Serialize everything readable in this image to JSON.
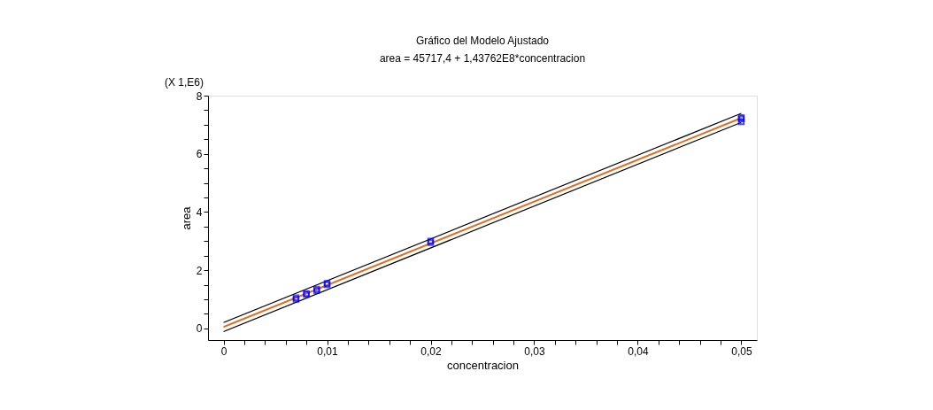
{
  "chart_data": {
    "type": "scatter",
    "title": "Gráfico del Modelo Ajustado",
    "subtitle": "area = 45717,4 + 1,43762E8*concentracion",
    "xlabel": "concentracion",
    "ylabel": "area",
    "annotations": [
      "(X 1,E6)"
    ],
    "xlim": [
      -0.0015,
      0.0515
    ],
    "ylim": [
      -0.4,
      8
    ],
    "xticks": [
      {
        "value": 0,
        "label": "0"
      },
      {
        "value": 0.002,
        "label": null
      },
      {
        "value": 0.004,
        "label": null
      },
      {
        "value": 0.006,
        "label": null
      },
      {
        "value": 0.008,
        "label": null
      },
      {
        "value": 0.01,
        "label": "0,01"
      },
      {
        "value": 0.012,
        "label": null
      },
      {
        "value": 0.014,
        "label": null
      },
      {
        "value": 0.016,
        "label": null
      },
      {
        "value": 0.018,
        "label": null
      },
      {
        "value": 0.02,
        "label": "0,02"
      },
      {
        "value": 0.022,
        "label": null
      },
      {
        "value": 0.024,
        "label": null
      },
      {
        "value": 0.026,
        "label": null
      },
      {
        "value": 0.028,
        "label": null
      },
      {
        "value": 0.03,
        "label": "0,03"
      },
      {
        "value": 0.032,
        "label": null
      },
      {
        "value": 0.034,
        "label": null
      },
      {
        "value": 0.036,
        "label": null
      },
      {
        "value": 0.038,
        "label": null
      },
      {
        "value": 0.04,
        "label": "0,04"
      },
      {
        "value": 0.042,
        "label": null
      },
      {
        "value": 0.044,
        "label": null
      },
      {
        "value": 0.046,
        "label": null
      },
      {
        "value": 0.048,
        "label": null
      },
      {
        "value": 0.05,
        "label": "0,05"
      }
    ],
    "yticks": [
      0,
      {
        "value": 0.5,
        "label": null
      },
      {
        "value": 1,
        "label": null
      },
      {
        "value": 1.5,
        "label": null
      },
      2,
      {
        "value": 2.5,
        "label": null
      },
      {
        "value": 3,
        "label": null
      },
      {
        "value": 3.5,
        "label": null
      },
      4,
      {
        "value": 4.5,
        "label": null
      },
      {
        "value": 5,
        "label": null
      },
      {
        "value": 5.5,
        "label": null
      },
      6,
      {
        "value": 6.5,
        "label": null
      },
      {
        "value": 7,
        "label": null
      },
      {
        "value": 7.5,
        "label": null
      },
      8
    ],
    "grid": false,
    "legend": false,
    "series": [
      {
        "type": "line",
        "color": "#000000",
        "x": [
          0,
          0.05
        ],
        "values": [
          0.2,
          7.39
        ]
      },
      {
        "type": "line",
        "color": "#000000",
        "x": [
          0,
          0.05
        ],
        "values": [
          -0.11,
          7.08
        ]
      },
      {
        "type": "line",
        "color": "#e07020",
        "x": [
          0,
          0.05
        ],
        "values": [
          0.05,
          7.23
        ]
      },
      {
        "marker": "square",
        "color": "#0000ff",
        "x": [
          0.007,
          0.007,
          0.008,
          0.008,
          0.009,
          0.009,
          0.01,
          0.01,
          0.02,
          0.02,
          0.05,
          0.05,
          0.05
        ],
        "values": [
          1.0,
          1.05,
          1.17,
          1.2,
          1.3,
          1.35,
          1.5,
          1.55,
          2.95,
          3.0,
          7.1,
          7.2,
          7.25
        ]
      }
    ]
  }
}
